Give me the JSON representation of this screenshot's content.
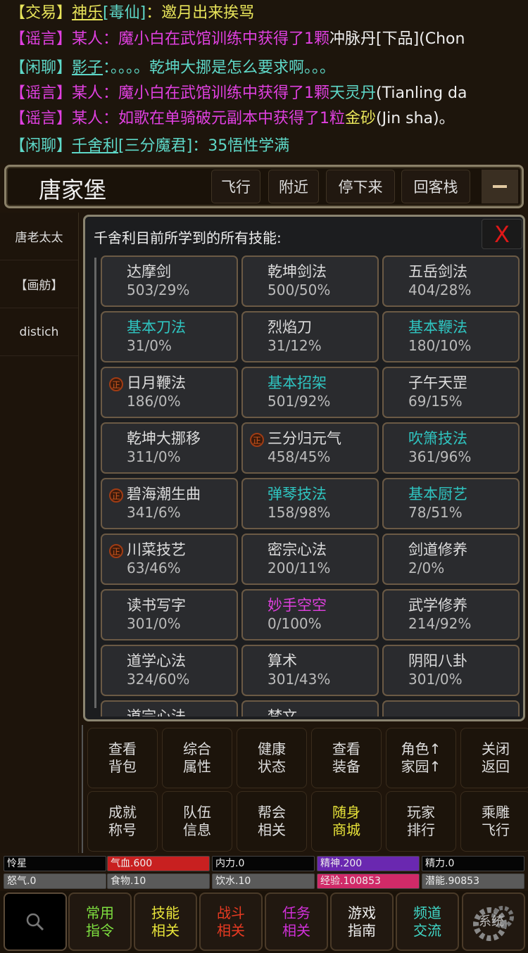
{
  "chat": [
    [
      {
        "t": "【交易】",
        "c": "#e8e45a"
      },
      {
        "t": "神乐",
        "c": "#e8e45a",
        "u": true
      },
      {
        "t": "[毒仙]",
        "c": "#5ed8c8"
      },
      {
        "t": "：邀月出来挨骂",
        "c": "#e8e45a"
      }
    ],
    [
      {
        "t": "【谣言】某人：魔小白在武馆训练中获得了1颗",
        "c": "#e040e0"
      },
      {
        "t": "冲脉丹[下品](Chon",
        "c": "#eeeeee"
      }
    ],
    [
      {
        "t": "【闲聊】",
        "c": "#5ed8c8"
      },
      {
        "t": "影子",
        "c": "#5ed8c8",
        "u": true
      },
      {
        "t": "：。。。。乾坤大挪是怎么要求啊。。。",
        "c": "#5ed8c8"
      }
    ],
    [
      {
        "t": "【谣言】某人：魔小白在武馆训练中获得了1颗",
        "c": "#e040e0"
      },
      {
        "t": "天灵丹",
        "c": "#5ed8c8"
      },
      {
        "t": "(Tianling da",
        "c": "#eeeeee"
      }
    ],
    [
      {
        "t": "【谣言】某人：如歌在单骑破元副本中获得了1粒",
        "c": "#e040e0"
      },
      {
        "t": "金砂",
        "c": "#e8e45a"
      },
      {
        "t": "(Jin sha)。",
        "c": "#eeeeee"
      }
    ],
    [
      {
        "t": "【闲聊】",
        "c": "#5ed8c8"
      },
      {
        "t": "千舍利",
        "c": "#5ed8c8",
        "u": true
      },
      {
        "t": "[三分魔君]：35悟性学满",
        "c": "#5ed8c8"
      }
    ]
  ],
  "header": {
    "location": "唐家堡",
    "buttons": [
      "飞行",
      "附近",
      "停下来",
      "回客栈"
    ],
    "collapse_icon": "minus-icon"
  },
  "sidebar": {
    "items": [
      "唐老太太",
      "【画舫】",
      "distich"
    ]
  },
  "panel": {
    "title": "千舍利目前所学到的所有技能:",
    "close_label": "X",
    "skills": [
      {
        "name": "达摩剑",
        "value": "503/29%",
        "color": "#dddddd"
      },
      {
        "name": "乾坤剑法",
        "value": "500/50%",
        "color": "#dddddd"
      },
      {
        "name": "五岳剑法",
        "value": "404/28%",
        "color": "#dddddd"
      },
      {
        "name": "基本刀法",
        "value": "31/0%",
        "color": "#2fc4c0"
      },
      {
        "name": "烈焰刀",
        "value": "31/12%",
        "color": "#dddddd"
      },
      {
        "name": "基本鞭法",
        "value": "180/10%",
        "color": "#2fc4c0"
      },
      {
        "name": "日月鞭法",
        "value": "186/0%",
        "color": "#dddddd",
        "zheng": true
      },
      {
        "name": "基本招架",
        "value": "501/92%",
        "color": "#2fc4c0"
      },
      {
        "name": "子午天罡",
        "value": "69/15%",
        "color": "#dddddd"
      },
      {
        "name": "乾坤大挪移",
        "value": "311/0%",
        "color": "#dddddd"
      },
      {
        "name": "三分归元气",
        "value": "458/45%",
        "color": "#dddddd",
        "zheng": true
      },
      {
        "name": "吹箫技法",
        "value": "361/96%",
        "color": "#2fc4c0"
      },
      {
        "name": "碧海潮生曲",
        "value": "341/6%",
        "color": "#dddddd",
        "zheng": true
      },
      {
        "name": "弹琴技法",
        "value": "158/98%",
        "color": "#2fc4c0"
      },
      {
        "name": "基本厨艺",
        "value": "78/51%",
        "color": "#2fc4c0"
      },
      {
        "name": "川菜技艺",
        "value": "63/46%",
        "color": "#dddddd",
        "zheng": true
      },
      {
        "name": "密宗心法",
        "value": "200/11%",
        "color": "#dddddd"
      },
      {
        "name": "剑道修养",
        "value": "2/0%",
        "color": "#dddddd"
      },
      {
        "name": "读书写字",
        "value": "301/0%",
        "color": "#dddddd"
      },
      {
        "name": "妙手空空",
        "value": "0/100%",
        "color": "#e040e0"
      },
      {
        "name": "武学修养",
        "value": "214/92%",
        "color": "#dddddd"
      },
      {
        "name": "道学心法",
        "value": "324/60%",
        "color": "#dddddd"
      },
      {
        "name": "算术",
        "value": "301/43%",
        "color": "#dddddd"
      },
      {
        "name": "阴阳八卦",
        "value": "301/0%",
        "color": "#dddddd"
      },
      {
        "name": "道宗心法",
        "value": "",
        "color": "#dddddd"
      },
      {
        "name": "梵文",
        "value": "",
        "color": "#dddddd"
      },
      {
        "name": "",
        "value": "",
        "color": "#dddddd"
      }
    ],
    "zheng_label": "正"
  },
  "actions": [
    {
      "label": "查看\n背包",
      "color": "#dddddd"
    },
    {
      "label": "综合\n属性",
      "color": "#dddddd"
    },
    {
      "label": "健康\n状态",
      "color": "#dddddd"
    },
    {
      "label": "查看\n装备",
      "color": "#dddddd"
    },
    {
      "label": "角色↑\n家园↑",
      "color": "#dddddd"
    },
    {
      "label": "关闭\n返回",
      "color": "#dddddd"
    },
    {
      "label": "成就\n称号",
      "color": "#dddddd"
    },
    {
      "label": "队伍\n信息",
      "color": "#dddddd"
    },
    {
      "label": "帮会\n相关",
      "color": "#dddddd"
    },
    {
      "label": "随身\n商城",
      "color": "#e8e43a"
    },
    {
      "label": "玩家\n排行",
      "color": "#dddddd"
    },
    {
      "label": "乘雕\n飞行",
      "color": "#dddddd"
    }
  ],
  "stats": [
    {
      "label": "怜星",
      "bg": "#050505"
    },
    {
      "label": "气血.600",
      "bg": "#c82020"
    },
    {
      "label": "内力.0",
      "bg": "#050505"
    },
    {
      "label": "精神.200",
      "bg": "#6a28b0"
    },
    {
      "label": "精力.0",
      "bg": "#050505"
    },
    {
      "label": "怒气.0",
      "bg": "#5a5a5a"
    },
    {
      "label": "食物.10",
      "bg": "#5a5a5a"
    },
    {
      "label": "饮水.10",
      "bg": "#5a5a5a"
    },
    {
      "label": "经验.100853",
      "bg": "#d02a68"
    },
    {
      "label": "潜能.90853",
      "bg": "#5a5a5a"
    }
  ],
  "nav": [
    {
      "label": "常用\n指令",
      "color": "#7ee040"
    },
    {
      "label": "技能\n相关",
      "color": "#e8e43a"
    },
    {
      "label": "战斗\n相关",
      "color": "#e83a22"
    },
    {
      "label": "任务\n相关",
      "color": "#d030d8"
    },
    {
      "label": "游戏\n指南",
      "color": "#eeeeee"
    },
    {
      "label": "频道\n交流",
      "color": "#40d8c8"
    }
  ],
  "nav_search_icon": "search-icon",
  "nav_settings_icon": "gear-icon",
  "nav_settings_label": "系统"
}
